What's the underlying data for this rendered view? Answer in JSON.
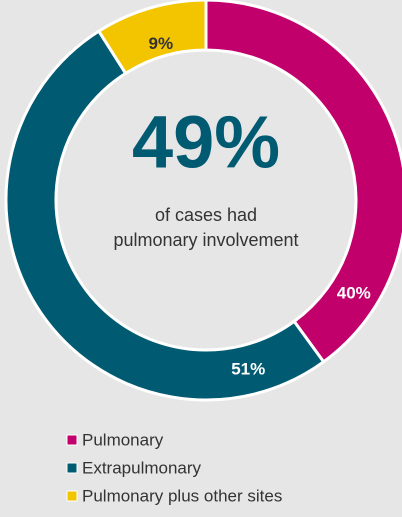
{
  "chart_data": {
    "type": "donut",
    "center_label": "49%",
    "center_text": [
      "of cases had",
      "pulmonary involvement"
    ],
    "categories": [
      "Pulmonary",
      "Extrapulmonary",
      "Pulmonary plus other sites"
    ],
    "values": [
      40,
      51,
      9
    ],
    "value_labels": [
      "40%",
      "51%",
      "9%"
    ],
    "colors": [
      "#c2006b",
      "#005a72",
      "#f2c500"
    ],
    "legend": "bottom"
  }
}
